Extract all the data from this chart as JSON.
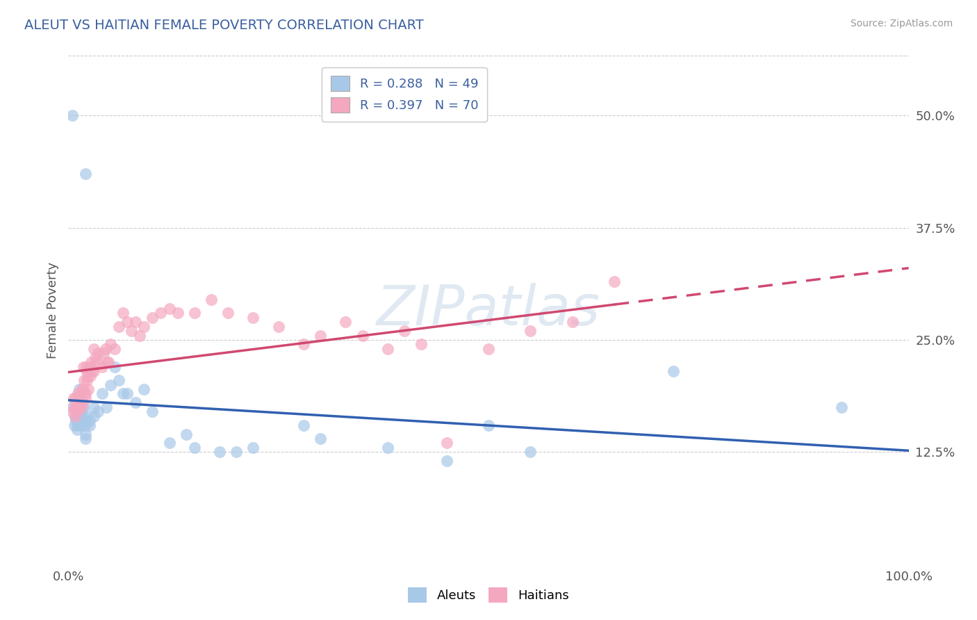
{
  "title": "ALEUT VS HAITIAN FEMALE POVERTY CORRELATION CHART",
  "source": "Source: ZipAtlas.com",
  "ylabel": "Female Poverty",
  "xlim": [
    0.0,
    1.0
  ],
  "ylim": [
    0.0,
    0.5667
  ],
  "xticks": [
    0.0,
    1.0
  ],
  "xlabels": [
    "0.0%",
    "100.0%"
  ],
  "yticks": [
    0.125,
    0.25,
    0.375,
    0.5
  ],
  "ytick_labels": [
    "12.5%",
    "25.0%",
    "37.5%",
    "50.0%"
  ],
  "aleut_color": "#a8c8e8",
  "haitian_color": "#f4a8c0",
  "aleut_line_color": "#3060b0",
  "haitian_line_color": "#d04870",
  "title_color": "#3a5fa0",
  "source_color": "#999999",
  "grid_color": "#cccccc",
  "bg_color": "#ffffff",
  "legend_labels": [
    "R = 0.288   N = 49",
    "R = 0.397   N = 70"
  ],
  "bottom_legend": [
    "Aleuts",
    "Haitians"
  ],
  "watermark": "ZIPatlas",
  "aleut_scatter": [
    [
      0.005,
      0.5
    ],
    [
      0.02,
      0.435
    ],
    [
      0.005,
      0.175
    ],
    [
      0.007,
      0.155
    ],
    [
      0.008,
      0.165
    ],
    [
      0.009,
      0.16
    ],
    [
      0.01,
      0.17
    ],
    [
      0.01,
      0.155
    ],
    [
      0.01,
      0.15
    ],
    [
      0.012,
      0.18
    ],
    [
      0.013,
      0.195
    ],
    [
      0.015,
      0.165
    ],
    [
      0.015,
      0.155
    ],
    [
      0.016,
      0.17
    ],
    [
      0.017,
      0.16
    ],
    [
      0.018,
      0.175
    ],
    [
      0.02,
      0.155
    ],
    [
      0.02,
      0.145
    ],
    [
      0.02,
      0.14
    ],
    [
      0.022,
      0.165
    ],
    [
      0.025,
      0.16
    ],
    [
      0.025,
      0.155
    ],
    [
      0.03,
      0.175
    ],
    [
      0.03,
      0.165
    ],
    [
      0.035,
      0.17
    ],
    [
      0.04,
      0.19
    ],
    [
      0.045,
      0.175
    ],
    [
      0.05,
      0.2
    ],
    [
      0.055,
      0.22
    ],
    [
      0.06,
      0.205
    ],
    [
      0.065,
      0.19
    ],
    [
      0.07,
      0.19
    ],
    [
      0.08,
      0.18
    ],
    [
      0.09,
      0.195
    ],
    [
      0.1,
      0.17
    ],
    [
      0.12,
      0.135
    ],
    [
      0.14,
      0.145
    ],
    [
      0.15,
      0.13
    ],
    [
      0.18,
      0.125
    ],
    [
      0.2,
      0.125
    ],
    [
      0.22,
      0.13
    ],
    [
      0.28,
      0.155
    ],
    [
      0.3,
      0.14
    ],
    [
      0.38,
      0.13
    ],
    [
      0.45,
      0.115
    ],
    [
      0.5,
      0.155
    ],
    [
      0.55,
      0.125
    ],
    [
      0.72,
      0.215
    ],
    [
      0.92,
      0.175
    ]
  ],
  "haitian_scatter": [
    [
      0.005,
      0.17
    ],
    [
      0.006,
      0.185
    ],
    [
      0.007,
      0.175
    ],
    [
      0.008,
      0.165
    ],
    [
      0.008,
      0.185
    ],
    [
      0.009,
      0.175
    ],
    [
      0.01,
      0.18
    ],
    [
      0.01,
      0.17
    ],
    [
      0.011,
      0.19
    ],
    [
      0.012,
      0.18
    ],
    [
      0.013,
      0.175
    ],
    [
      0.014,
      0.185
    ],
    [
      0.015,
      0.19
    ],
    [
      0.015,
      0.175
    ],
    [
      0.016,
      0.195
    ],
    [
      0.017,
      0.18
    ],
    [
      0.018,
      0.22
    ],
    [
      0.018,
      0.195
    ],
    [
      0.019,
      0.205
    ],
    [
      0.02,
      0.19
    ],
    [
      0.02,
      0.185
    ],
    [
      0.021,
      0.22
    ],
    [
      0.022,
      0.215
    ],
    [
      0.022,
      0.205
    ],
    [
      0.023,
      0.21
    ],
    [
      0.024,
      0.195
    ],
    [
      0.025,
      0.22
    ],
    [
      0.026,
      0.21
    ],
    [
      0.027,
      0.225
    ],
    [
      0.028,
      0.215
    ],
    [
      0.03,
      0.24
    ],
    [
      0.03,
      0.215
    ],
    [
      0.032,
      0.23
    ],
    [
      0.034,
      0.225
    ],
    [
      0.035,
      0.235
    ],
    [
      0.04,
      0.22
    ],
    [
      0.042,
      0.235
    ],
    [
      0.044,
      0.24
    ],
    [
      0.046,
      0.225
    ],
    [
      0.048,
      0.225
    ],
    [
      0.05,
      0.245
    ],
    [
      0.055,
      0.24
    ],
    [
      0.06,
      0.265
    ],
    [
      0.065,
      0.28
    ],
    [
      0.07,
      0.27
    ],
    [
      0.075,
      0.26
    ],
    [
      0.08,
      0.27
    ],
    [
      0.085,
      0.255
    ],
    [
      0.09,
      0.265
    ],
    [
      0.1,
      0.275
    ],
    [
      0.11,
      0.28
    ],
    [
      0.12,
      0.285
    ],
    [
      0.13,
      0.28
    ],
    [
      0.15,
      0.28
    ],
    [
      0.17,
      0.295
    ],
    [
      0.19,
      0.28
    ],
    [
      0.22,
      0.275
    ],
    [
      0.25,
      0.265
    ],
    [
      0.28,
      0.245
    ],
    [
      0.3,
      0.255
    ],
    [
      0.33,
      0.27
    ],
    [
      0.35,
      0.255
    ],
    [
      0.38,
      0.24
    ],
    [
      0.4,
      0.26
    ],
    [
      0.42,
      0.245
    ],
    [
      0.45,
      0.135
    ],
    [
      0.5,
      0.24
    ],
    [
      0.55,
      0.26
    ],
    [
      0.6,
      0.27
    ],
    [
      0.65,
      0.315
    ]
  ]
}
